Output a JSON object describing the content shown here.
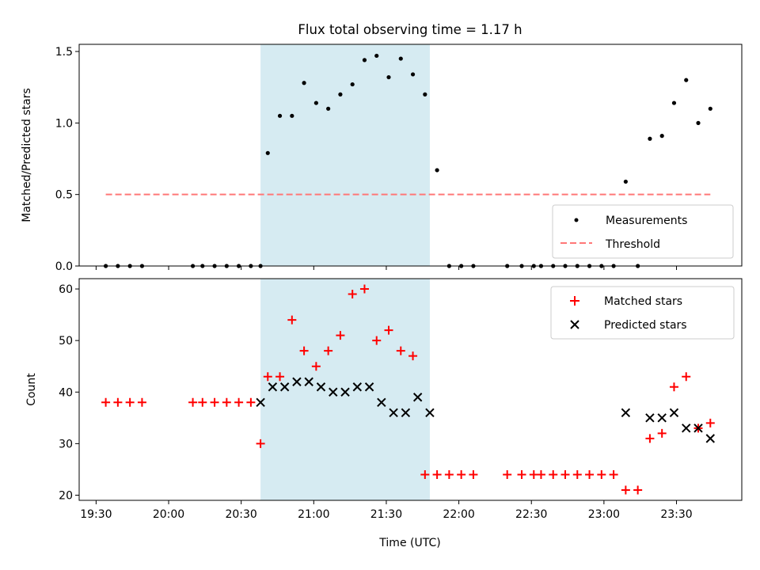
{
  "chart_data": [
    {
      "type": "scatter",
      "title": "Flux total observing time = 1.17 h",
      "xlabel": "",
      "ylabel": "Matched/Predicted stars",
      "ylim": [
        0,
        1.55
      ],
      "yticks": [
        "0.0",
        "0.5",
        "1.0",
        "1.5"
      ],
      "legend_position": "lower-right",
      "series": [
        {
          "name": "Measurements",
          "marker": "dot",
          "color": "#000000",
          "x": [
            "19:34",
            "19:39",
            "19:44",
            "19:49",
            "20:10",
            "20:14",
            "20:19",
            "20:24",
            "20:29",
            "20:34",
            "20:38",
            "20:41",
            "20:46",
            "20:51",
            "20:56",
            "21:01",
            "21:06",
            "21:11",
            "21:16",
            "21:21",
            "21:26",
            "21:31",
            "21:36",
            "21:41",
            "21:46",
            "21:51",
            "21:56",
            "22:01",
            "22:06",
            "22:20",
            "22:26",
            "22:31",
            "22:34",
            "22:39",
            "22:44",
            "22:49",
            "22:54",
            "22:59",
            "23:04",
            "23:09",
            "23:14",
            "23:19",
            "23:24",
            "23:29",
            "23:34",
            "23:39",
            "23:44"
          ],
          "y": [
            0,
            0,
            0,
            0,
            0,
            0,
            0,
            0,
            0,
            0,
            0,
            0.79,
            1.05,
            1.05,
            1.28,
            1.14,
            1.1,
            1.2,
            1.27,
            1.44,
            1.47,
            1.32,
            1.45,
            1.34,
            1.2,
            0.67,
            0,
            0,
            0,
            0,
            0,
            0,
            0,
            0,
            0,
            0,
            0,
            0,
            0,
            0.59,
            0,
            0.89,
            0.91,
            1.14,
            1.3,
            1.0,
            1.1
          ]
        },
        {
          "name": "Threshold",
          "style": "dashed-line",
          "color": "#ff7777",
          "x": [
            "19:34",
            "23:44"
          ],
          "y": [
            0.5,
            0.5
          ]
        }
      ]
    },
    {
      "type": "scatter",
      "title": "",
      "xlabel": "Time (UTC)",
      "ylabel": "Count",
      "ylim": [
        19,
        62
      ],
      "yticks": [
        "20",
        "30",
        "40",
        "50",
        "60"
      ],
      "legend_position": "upper-right",
      "series": [
        {
          "name": "Matched stars",
          "marker": "plus",
          "color": "#ff0000",
          "x": [
            "19:34",
            "19:39",
            "19:44",
            "19:49",
            "20:10",
            "20:14",
            "20:19",
            "20:24",
            "20:29",
            "20:34",
            "20:38",
            "20:41",
            "20:46",
            "20:51",
            "20:56",
            "21:01",
            "21:06",
            "21:11",
            "21:16",
            "21:21",
            "21:26",
            "21:31",
            "21:36",
            "21:41",
            "21:46",
            "21:51",
            "21:56",
            "22:01",
            "22:06",
            "22:20",
            "22:26",
            "22:31",
            "22:34",
            "22:39",
            "22:44",
            "22:49",
            "22:54",
            "22:59",
            "23:04",
            "23:09",
            "23:14",
            "23:19",
            "23:24",
            "23:29",
            "23:34",
            "23:39",
            "23:44"
          ],
          "y": [
            38,
            38,
            38,
            38,
            38,
            38,
            38,
            38,
            38,
            38,
            30,
            43,
            43,
            54,
            48,
            45,
            48,
            51,
            59,
            60,
            50,
            52,
            48,
            47,
            24,
            24,
            24,
            24,
            24,
            24,
            24,
            24,
            24,
            24,
            24,
            24,
            24,
            24,
            24,
            21,
            21,
            31,
            32,
            41,
            43,
            33,
            34
          ]
        },
        {
          "name": "Predicted stars",
          "marker": "x",
          "color": "#000000",
          "x": [
            "20:38",
            "20:43",
            "20:48",
            "20:53",
            "20:58",
            "21:03",
            "21:08",
            "21:13",
            "21:18",
            "21:23",
            "21:28",
            "21:33",
            "21:38",
            "21:43",
            "21:48",
            "23:09",
            "23:19",
            "23:24",
            "23:29",
            "23:34",
            "23:39",
            "23:44"
          ],
          "y": [
            38,
            41,
            41,
            42,
            42,
            41,
            40,
            40,
            41,
            41,
            38,
            36,
            36,
            39,
            36,
            36,
            35,
            35,
            36,
            33,
            33,
            31
          ]
        }
      ]
    }
  ],
  "shared_x": {
    "ticks": [
      "19:30",
      "20:00",
      "20:30",
      "21:00",
      "21:30",
      "22:00",
      "22:30",
      "23:00",
      "23:30"
    ],
    "range": [
      "19:23",
      "23:57"
    ],
    "shaded_span": [
      "20:38",
      "21:48"
    ],
    "shaded_color": "#add8e6"
  }
}
